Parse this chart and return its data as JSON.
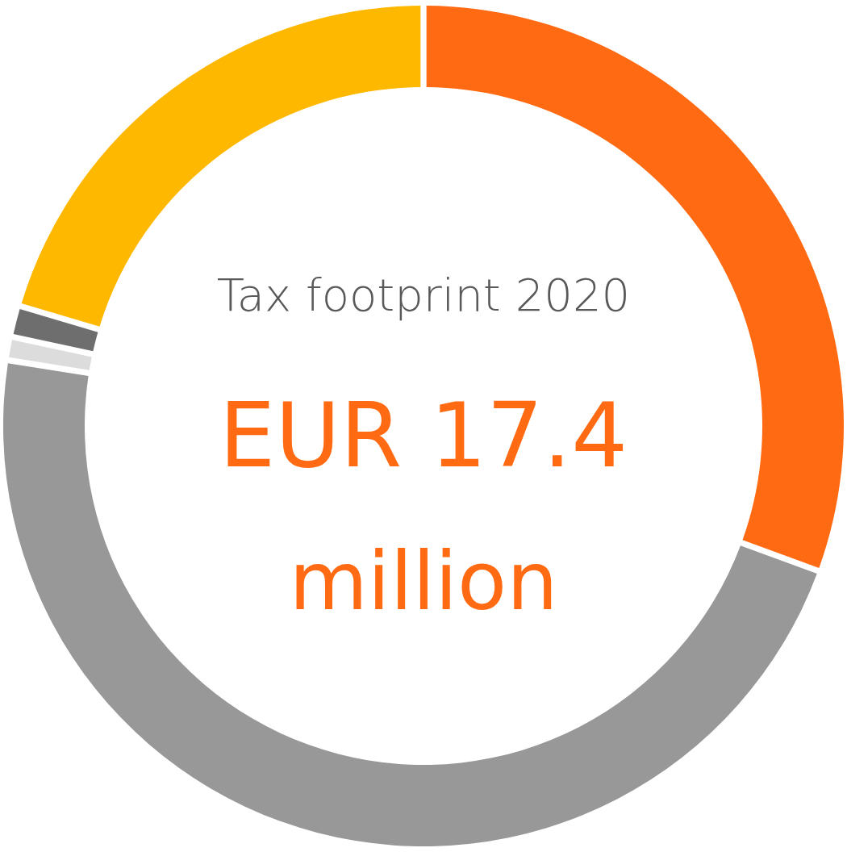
{
  "chart_data": {
    "type": "donut",
    "title": "Tax footprint 2020",
    "annotations": [
      "EUR 17.4",
      "million"
    ],
    "categories": [
      null,
      null,
      null,
      null,
      null
    ],
    "values": [
      30.6,
      46.9,
      0.9,
      1.2,
      20.4
    ],
    "colors": [
      "#ff6a13",
      "#989898",
      "#dcdcdc",
      "#6e6e6e",
      "#ffb800"
    ],
    "legend": false
  }
}
